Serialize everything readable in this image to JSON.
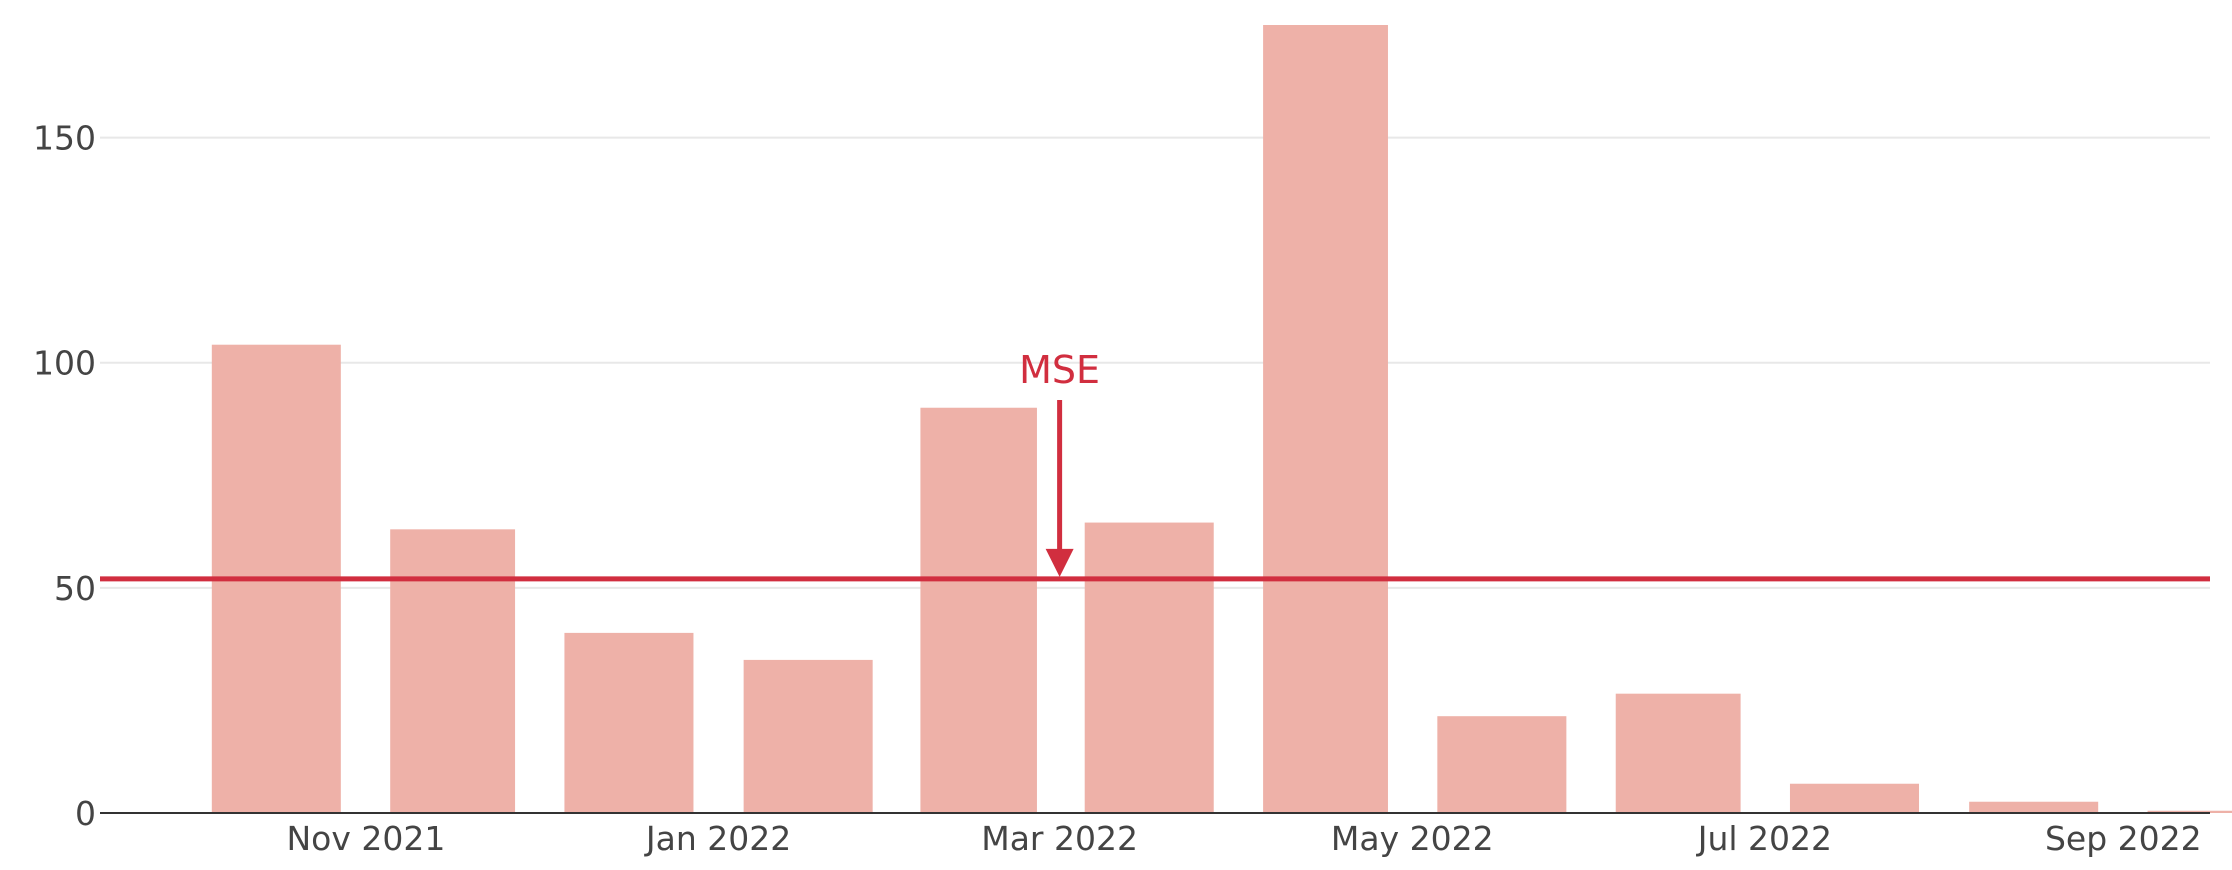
{
  "chart_data": {
    "type": "bar",
    "bar_color": "#eeb1a8",
    "grid_color": "#e8e8e8",
    "axis_color": "#333333",
    "reference_color": "#d12e3f",
    "ylim": [
      0,
      175
    ],
    "grid": true,
    "x_range": [
      "2021-09-16",
      "2022-09-16"
    ],
    "y_ticks": [
      {
        "value": 0,
        "label": "0"
      },
      {
        "value": 50,
        "label": "50"
      },
      {
        "value": 100,
        "label": "100"
      },
      {
        "value": 150,
        "label": "150"
      }
    ],
    "x_ticks": [
      {
        "date": "2021-11-01",
        "label": "Nov 2021"
      },
      {
        "date": "2022-01-01",
        "label": "Jan 2022"
      },
      {
        "date": "2022-03-01",
        "label": "Mar 2022"
      },
      {
        "date": "2022-05-01",
        "label": "May 2022"
      },
      {
        "date": "2022-07-01",
        "label": "Jul 2022"
      },
      {
        "date": "2022-09-01",
        "label": "Sep 2022"
      }
    ],
    "bars": [
      {
        "month": "2021-10",
        "value": 104
      },
      {
        "month": "2021-11",
        "value": 63
      },
      {
        "month": "2021-12",
        "value": 40
      },
      {
        "month": "2022-01",
        "value": 34
      },
      {
        "month": "2022-02",
        "value": 90
      },
      {
        "month": "2022-03",
        "value": 64.5
      },
      {
        "month": "2022-04",
        "value": 175
      },
      {
        "month": "2022-05",
        "value": 21.5
      },
      {
        "month": "2022-06",
        "value": 26.5
      },
      {
        "month": "2022-07",
        "value": 6.5
      },
      {
        "month": "2022-08",
        "value": 2.5
      },
      {
        "month": "2022-09",
        "value": 0.5
      }
    ],
    "reference_line": {
      "value": 52
    },
    "annotation": {
      "text": "MSE",
      "date": "2022-03-01",
      "value": 52
    }
  }
}
